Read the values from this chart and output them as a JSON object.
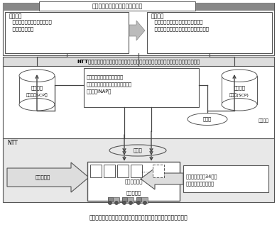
{
  "title_bar": "市内交換機への機能追加の考え方",
  "box1_title": "【従来】",
  "box1_text": "  事業者要望により，その都度\n  個別に機能追加",
  "box2_title": "【今後】",
  "box2_text": "  サービスを構成する共通的な機能を\n  「機能メニュー」としてあらかじめ用意",
  "middle_text": "NTT市内交換機の「機能メニュー」を組み合わせて制御し，独自にサービスを提供可能",
  "center_box_text": "・同一インタフェースを提供\n・網間のインタフェースは国際勧告\n　準拠（INAP）",
  "left_cyl1": "サービス",
  "left_cyl2": "制御局（SCP）",
  "right_cyl1": "サービス",
  "right_cyl2": "制御局(SCP)",
  "other_label": "他事業者",
  "signal1": "信号網",
  "signal2": "信号網",
  "ntt_label": "NTT",
  "open_label": "オープン化",
  "base_func": "基本接続機能",
  "exchange": "市内交換機",
  "menu_text": "機能メニュー【34種】\nを用意し，オープン化",
  "caption": "図　「市内交換機機能のオープン化（高度サービス接続）」の概要",
  "bg": "#ffffff",
  "dark_gray": "#666666",
  "mid_gray": "#999999",
  "light_gray": "#dddddd",
  "box_ec": "#555555",
  "inner_bg": "#e8e8e8"
}
